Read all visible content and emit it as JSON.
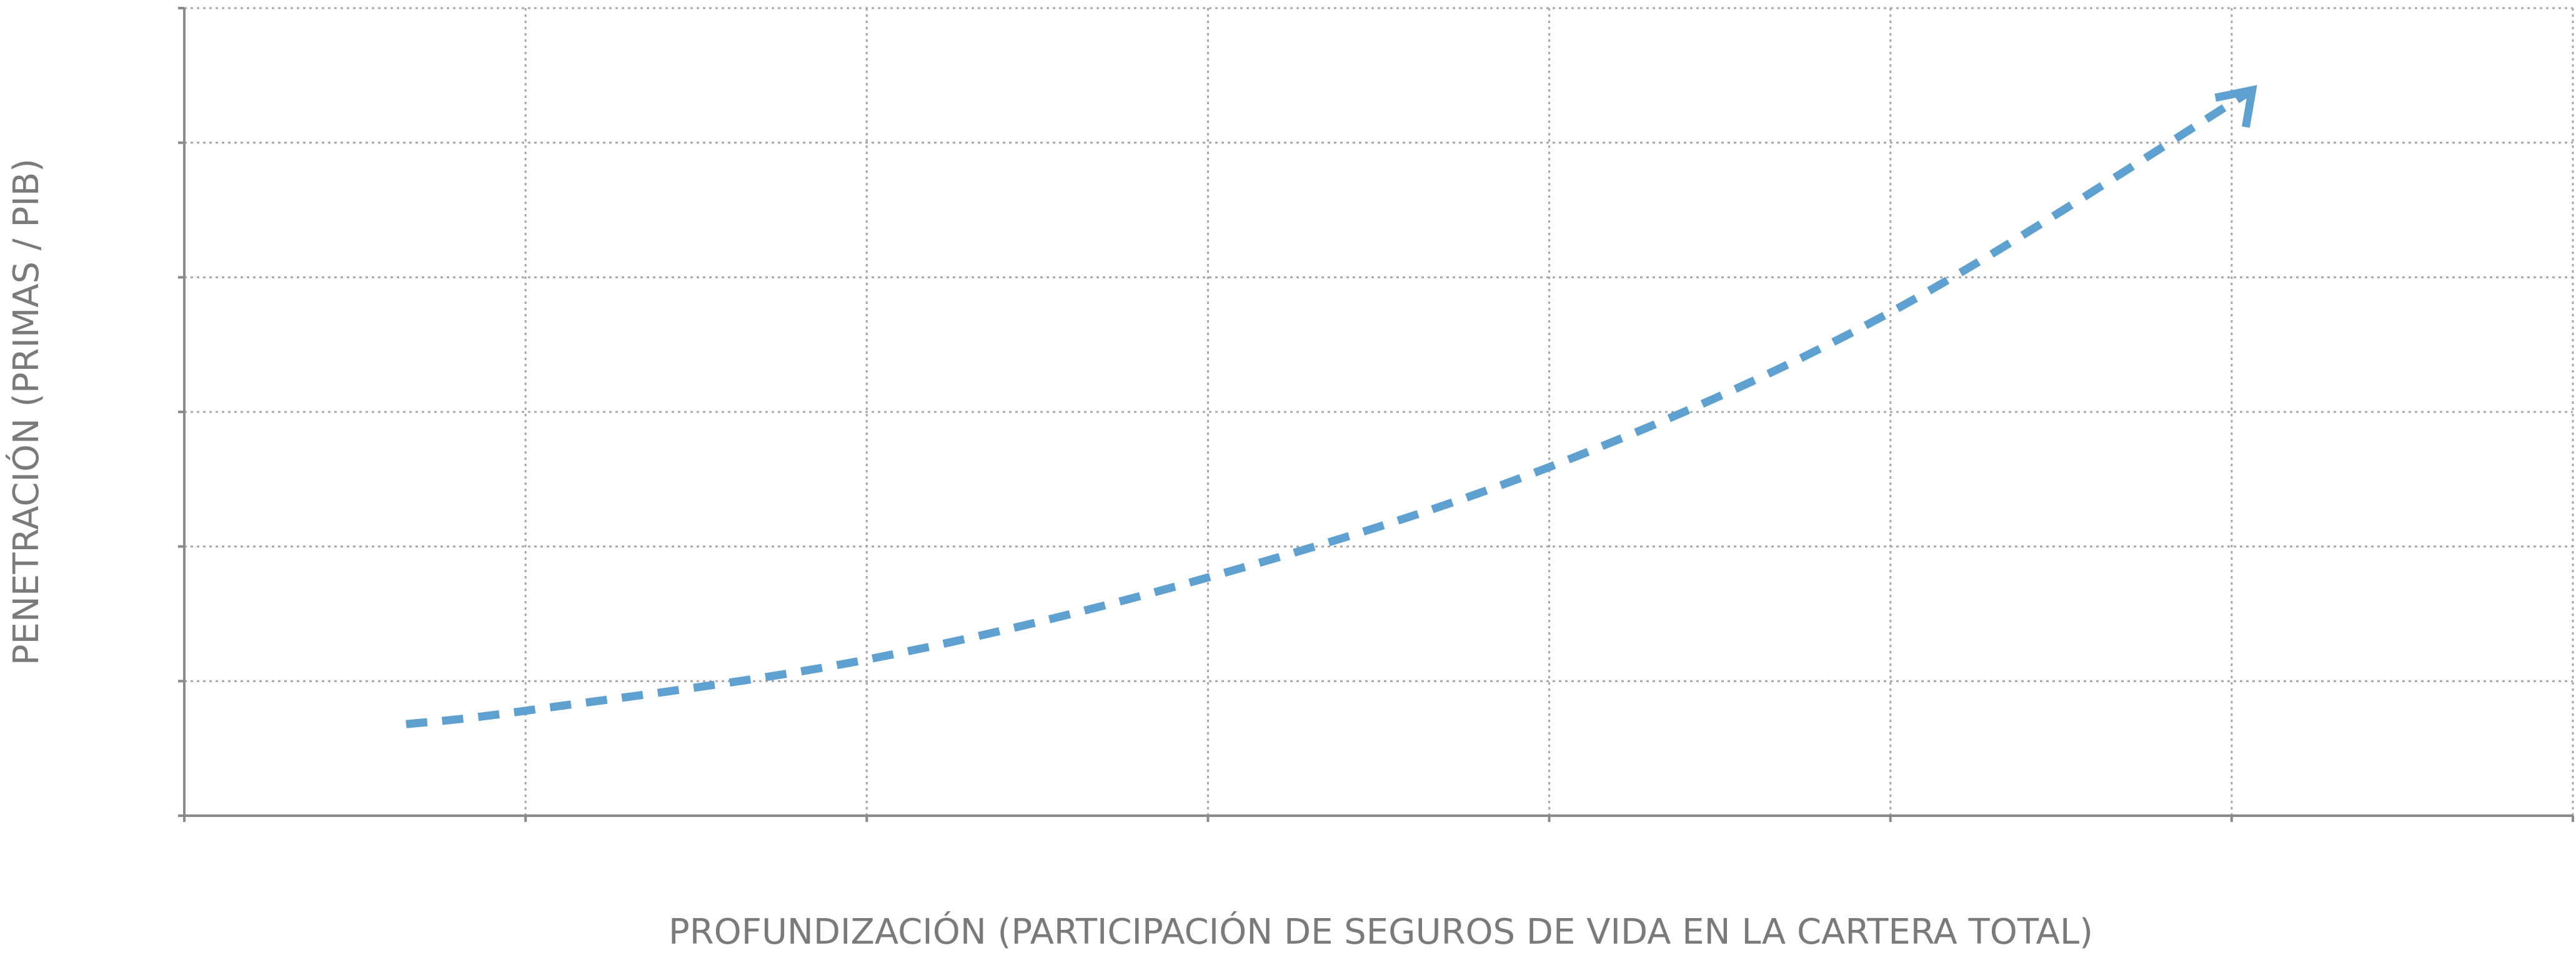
{
  "chart_data": {
    "type": "line",
    "x_label": "PROFUNDIZACIÓN (PARTICIPACIÓN DE SEGUROS DE VIDA EN LA CARTERA TOTAL)",
    "y_label": "PENETRACIÓN (PRIMAS / PIB)",
    "x": [
      0.65,
      1,
      2,
      3,
      4,
      5,
      6.06
    ],
    "values": [
      0.68,
      0.78,
      1.16,
      1.77,
      2.59,
      3.74,
      5.39
    ],
    "color": "#5ea0d0",
    "line_style": "dashed",
    "arrow_end": true,
    "xlim": [
      0,
      7
    ],
    "xticks": [
      0,
      1,
      2,
      3,
      4,
      5,
      6,
      7
    ],
    "ylim": [
      0,
      6
    ],
    "yticks": [
      0,
      1,
      2,
      3,
      4,
      5,
      6
    ],
    "grid": true
  }
}
